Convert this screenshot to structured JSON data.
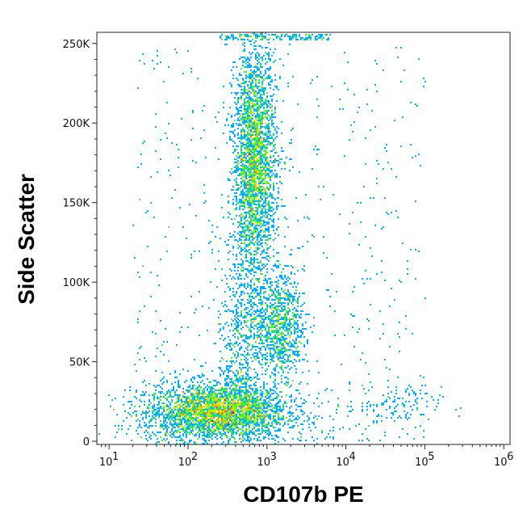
{
  "chart_data": {
    "type": "scatter",
    "subtype": "flow-cytometry-density-dot-plot",
    "title": "",
    "xlabel": "CD107b PE",
    "ylabel": "Side Scatter",
    "x_scale": "log",
    "y_scale": "linear",
    "xlim": [
      7,
      1200000
    ],
    "ylim": [
      -2000,
      257000
    ],
    "x_ticks": [
      {
        "value": 10,
        "label": "10",
        "exp": "1"
      },
      {
        "value": 100,
        "label": "10",
        "exp": "2"
      },
      {
        "value": 1000,
        "label": "10",
        "exp": "3"
      },
      {
        "value": 10000,
        "label": "10",
        "exp": "4"
      },
      {
        "value": 100000,
        "label": "10",
        "exp": "5"
      },
      {
        "value": 1000000,
        "label": "10",
        "exp": "6"
      }
    ],
    "y_ticks": [
      {
        "value": 0,
        "label": "0"
      },
      {
        "value": 50000,
        "label": "50K"
      },
      {
        "value": 100000,
        "label": "100K"
      },
      {
        "value": 150000,
        "label": "150K"
      },
      {
        "value": 200000,
        "label": "200K"
      },
      {
        "value": 250000,
        "label": "250K"
      }
    ],
    "grid": false,
    "legend": "none",
    "colormap": [
      "#0000d0",
      "#0050ff",
      "#00b0ff",
      "#00e0c0",
      "#40f040",
      "#c0f000",
      "#ffd000",
      "#ff7000",
      "#e00000"
    ],
    "populations": [
      {
        "x_center": 230,
        "y_center": 18000,
        "x_spread_decades": 0.45,
        "y_spread": 9000,
        "points": 3400
      },
      {
        "x_center": 700,
        "y_center": 185000,
        "x_spread_decades": 0.13,
        "y_spread": 32000,
        "points": 2400
      },
      {
        "x_center": 1500,
        "y_center": 72000,
        "x_spread_decades": 0.15,
        "y_spread": 16000,
        "points": 900
      },
      {
        "x_center": 40000,
        "y_center": 22000,
        "x_spread_decades": 0.3,
        "y_spread": 6000,
        "points": 120
      }
    ]
  }
}
